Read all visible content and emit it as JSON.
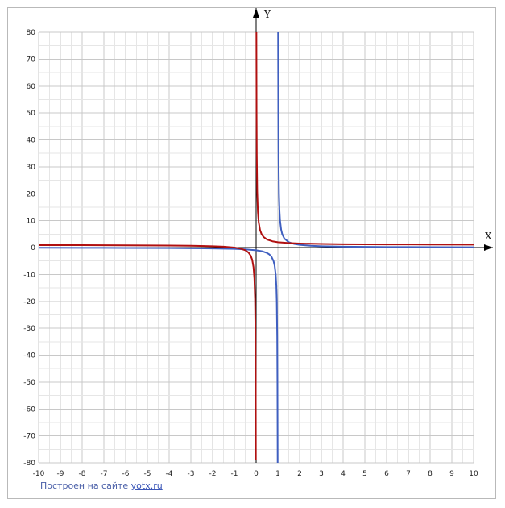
{
  "chart_data": {
    "type": "line",
    "xlabel": "X",
    "ylabel": "Y",
    "xlim": [
      -10,
      10
    ],
    "ylim": [
      -80,
      80
    ],
    "grid": true,
    "x_ticks": [
      -10,
      -9,
      -8,
      -7,
      -6,
      -5,
      -4,
      -3,
      -2,
      -1,
      0,
      1,
      2,
      3,
      4,
      5,
      6,
      7,
      8,
      9,
      10
    ],
    "y_ticks": [
      80,
      70,
      60,
      50,
      40,
      30,
      20,
      10,
      0,
      -10,
      -20,
      -30,
      -40,
      -50,
      -60,
      -70,
      -80
    ],
    "series": [
      {
        "color": "#3f5fc0",
        "asymptote_x": 1,
        "segments": [
          [
            [
              -10,
              -0.09
            ],
            [
              -8,
              -0.11
            ],
            [
              -6,
              -0.14
            ],
            [
              -4,
              -0.2
            ],
            [
              -3,
              -0.25
            ],
            [
              -2,
              -0.33
            ],
            [
              -1,
              -0.5
            ],
            [
              -0.5,
              -0.67
            ],
            [
              0,
              -1
            ],
            [
              0.3,
              -1.43
            ],
            [
              0.5,
              -2
            ],
            [
              0.6,
              -2.5
            ],
            [
              0.7,
              -3.33
            ],
            [
              0.8,
              -5
            ],
            [
              0.85,
              -6.67
            ],
            [
              0.9,
              -10
            ],
            [
              0.93,
              -14.3
            ],
            [
              0.95,
              -20
            ],
            [
              0.97,
              -33.3
            ],
            [
              0.98,
              -50
            ],
            [
              0.99,
              -80
            ]
          ],
          [
            [
              1.01,
              80
            ],
            [
              1.02,
              50
            ],
            [
              1.03,
              33.3
            ],
            [
              1.05,
              20
            ],
            [
              1.07,
              14.3
            ],
            [
              1.1,
              10
            ],
            [
              1.15,
              6.67
            ],
            [
              1.2,
              5
            ],
            [
              1.3,
              3.33
            ],
            [
              1.5,
              2
            ],
            [
              1.75,
              1.33
            ],
            [
              2,
              1
            ],
            [
              2.5,
              0.67
            ],
            [
              3,
              0.5
            ],
            [
              4,
              0.33
            ],
            [
              5,
              0.25
            ],
            [
              6,
              0.2
            ],
            [
              8,
              0.14
            ],
            [
              10,
              0.11
            ]
          ]
        ]
      },
      {
        "color": "#b01010",
        "asymptote_x": 0,
        "segments": [
          [
            [
              -10,
              0.9
            ],
            [
              -8,
              0.88
            ],
            [
              -6,
              0.83
            ],
            [
              -4,
              0.75
            ],
            [
              -3,
              0.67
            ],
            [
              -2,
              0.5
            ],
            [
              -1.5,
              0.33
            ],
            [
              -1,
              0
            ],
            [
              -0.75,
              -0.33
            ],
            [
              -0.5,
              -1
            ],
            [
              -0.35,
              -1.86
            ],
            [
              -0.25,
              -3
            ],
            [
              -0.18,
              -4.56
            ],
            [
              -0.12,
              -7.33
            ],
            [
              -0.08,
              -11.5
            ],
            [
              -0.05,
              -19
            ],
            [
              -0.03,
              -32.3
            ],
            [
              -0.02,
              -49
            ],
            [
              -0.0125,
              -79
            ]
          ],
          [
            [
              0.0125,
              81
            ],
            [
              0.02,
              51
            ],
            [
              0.03,
              34.3
            ],
            [
              0.05,
              21
            ],
            [
              0.08,
              13.5
            ],
            [
              0.12,
              9.33
            ],
            [
              0.18,
              6.56
            ],
            [
              0.25,
              5
            ],
            [
              0.35,
              3.86
            ],
            [
              0.5,
              3
            ],
            [
              0.75,
              2.33
            ],
            [
              1,
              2
            ],
            [
              1.5,
              1.67
            ],
            [
              2,
              1.5
            ],
            [
              3,
              1.33
            ],
            [
              4,
              1.25
            ],
            [
              5,
              1.2
            ],
            [
              6,
              1.17
            ],
            [
              8,
              1.13
            ],
            [
              10,
              1.1
            ]
          ]
        ]
      }
    ]
  },
  "credit": {
    "prefix": "Построен на сайте ",
    "link": "yotx.ru"
  }
}
